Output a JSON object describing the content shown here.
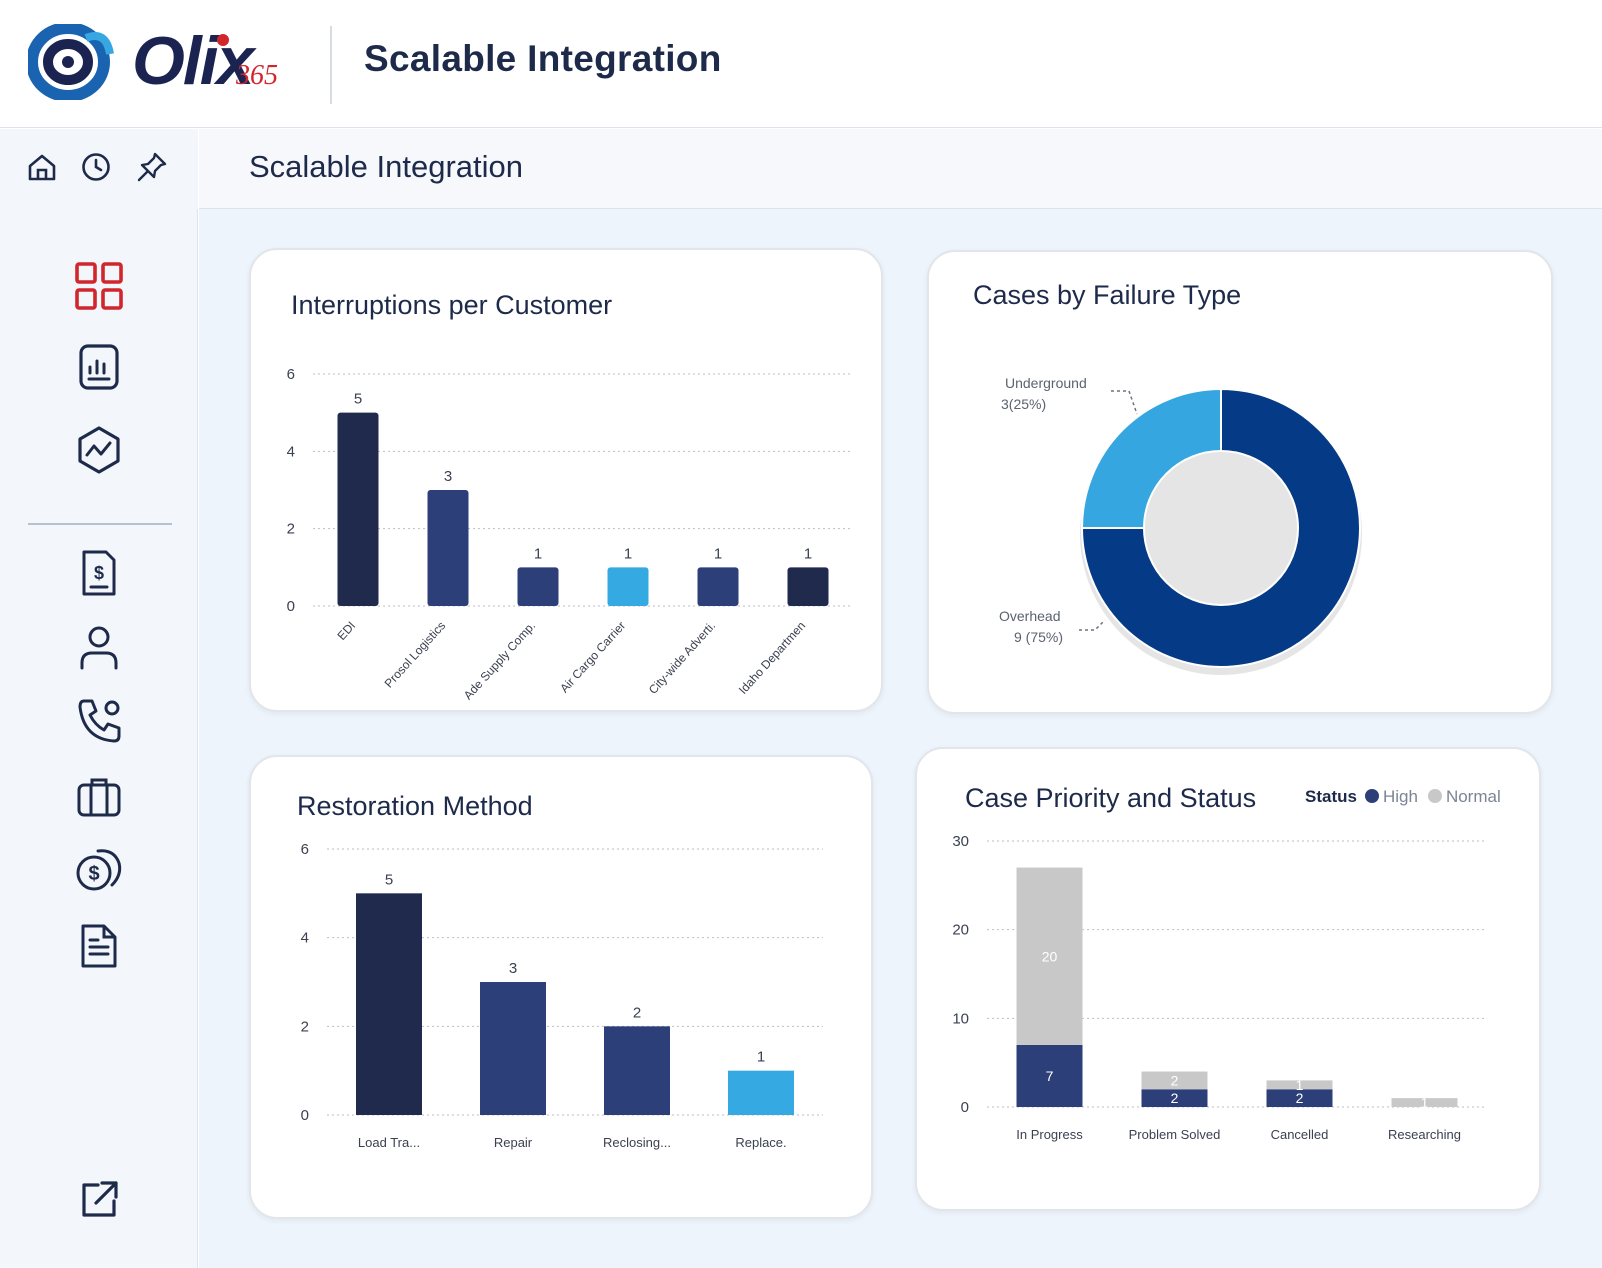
{
  "header": {
    "logo_text": "Olix",
    "logo_suffix": "365",
    "app_title": "Scalable Integration"
  },
  "toolbar_icons": [
    "home-icon",
    "history-icon",
    "pin-icon"
  ],
  "sidebar": {
    "items": [
      {
        "icon": "dashboard-grid-icon",
        "active": true
      },
      {
        "icon": "report-icon",
        "active": false
      },
      {
        "icon": "analytics-icon",
        "active": false
      },
      {
        "icon": "billing-icon",
        "active": false
      },
      {
        "icon": "user-icon",
        "active": false
      },
      {
        "icon": "phone-call-icon",
        "active": false
      },
      {
        "icon": "briefcase-icon",
        "active": false
      },
      {
        "icon": "payments-icon",
        "active": false
      },
      {
        "icon": "document-icon",
        "active": false
      }
    ],
    "footer_icon": "external-link-icon"
  },
  "page": {
    "title": "Scalable Integration"
  },
  "colors": {
    "accent_red": "#d0262c",
    "navy": "#1f2a4d",
    "indigo": "#2c3f78",
    "sky": "#35a9e1",
    "donut_dark": "#053a86",
    "donut_light": "#35a6df",
    "gray": "#c8c8c8"
  },
  "chart_data": [
    {
      "id": "interruptions",
      "type": "bar",
      "title": "Interruptions per Customer",
      "categories": [
        "EDI",
        "Prosol Logistics",
        "Ade Supply Comp.",
        "Air Cargo Carrier",
        "City-wide Adverti.",
        "Idaho Departmen"
      ],
      "values": [
        5,
        3,
        1,
        1,
        1,
        1
      ],
      "bar_colors": [
        "#1f2a4d",
        "#2c3f78",
        "#2c3f78",
        "#35a9e1",
        "#2c3f78",
        "#1f2a4d"
      ],
      "yticks": [
        0,
        2,
        4,
        6
      ],
      "ylim": [
        0,
        6
      ],
      "grid": true
    },
    {
      "id": "failure_type",
      "type": "pie",
      "title": "Cases by Failure Type",
      "slices": [
        {
          "label": "Overhead",
          "value": 9,
          "text": "9 (75%)",
          "color": "#053a86"
        },
        {
          "label": "Underground",
          "value": 3,
          "text": "3(25%)",
          "color": "#35a6df"
        }
      ]
    },
    {
      "id": "restoration",
      "type": "bar",
      "title": "Restoration Method",
      "categories": [
        "Load Tra...",
        "Repair",
        "Reclosing...",
        "Replace."
      ],
      "values": [
        5,
        3,
        2,
        1
      ],
      "bar_colors": [
        "#1f2a4d",
        "#2c3f78",
        "#2c3f78",
        "#35a9e1"
      ],
      "yticks": [
        0,
        2,
        4,
        6
      ],
      "ylim": [
        0,
        6
      ],
      "grid": true
    },
    {
      "id": "priority_status",
      "type": "bar",
      "stacked": true,
      "title": "Case Priority and Status",
      "legend_title": "Status",
      "categories": [
        "In Progress",
        "Problem Solved",
        "Cancelled",
        "Researching"
      ],
      "series": [
        {
          "name": "High",
          "values": [
            7,
            2,
            2,
            0
          ],
          "color": "#2c3f78"
        },
        {
          "name": "Normal",
          "values": [
            20,
            2,
            1,
            1
          ],
          "color": "#c8c8c8"
        }
      ],
      "yticks": [
        0,
        10,
        20,
        30
      ],
      "ylim": [
        0,
        30
      ],
      "grid": true,
      "legend_position": "top-right"
    }
  ]
}
